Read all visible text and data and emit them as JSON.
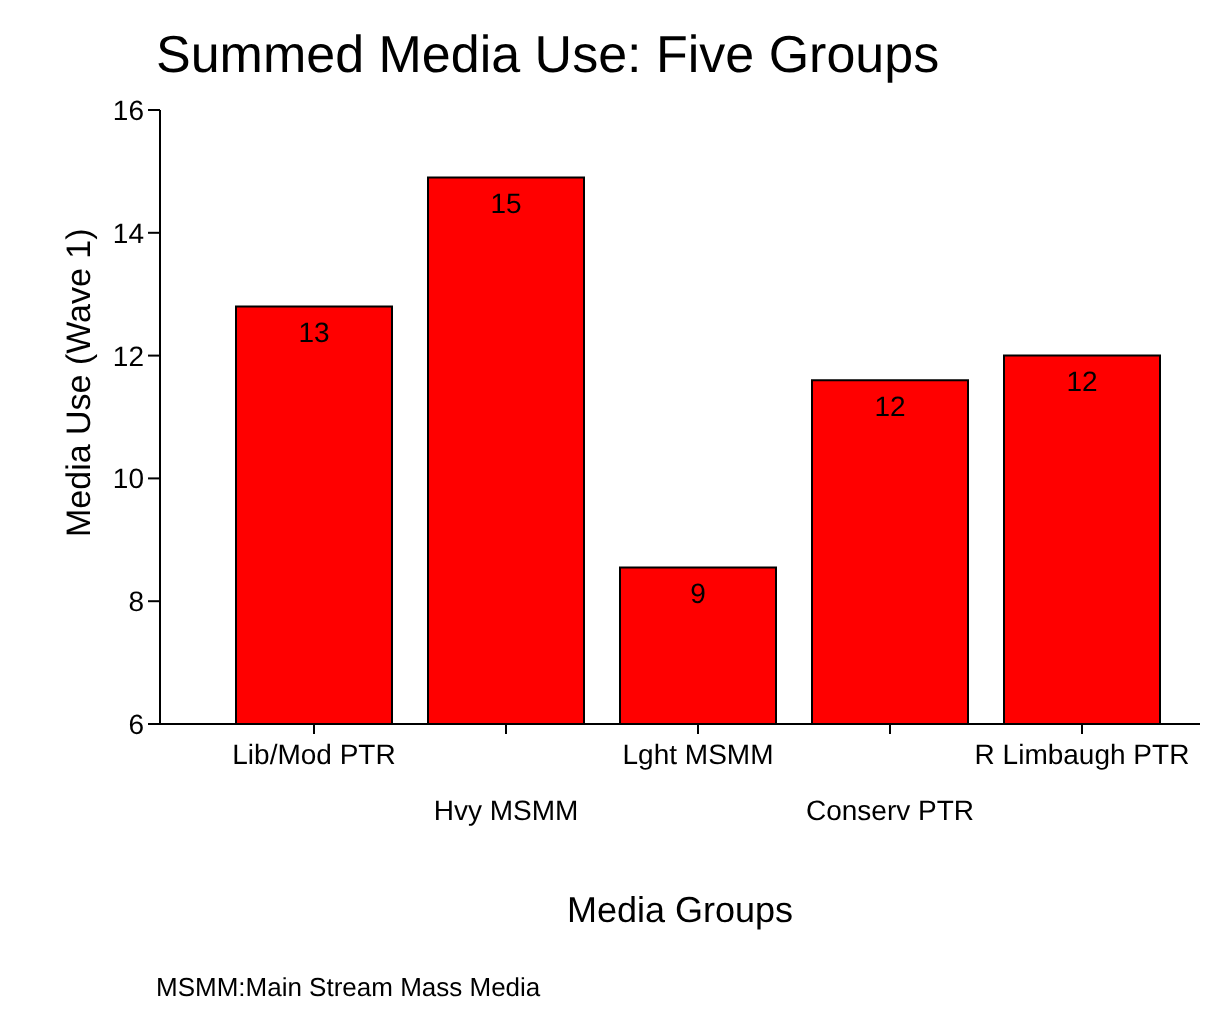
{
  "chart_data": {
    "type": "bar",
    "title": "Summed Media Use: Five Groups",
    "xlabel": "Media Groups",
    "ylabel": "Media Use (Wave 1)",
    "categories": [
      "Lib/Mod PTR",
      "Hvy MSMM",
      "Lght MSMM",
      "Conserv PTR",
      "R Limbaugh PTR"
    ],
    "values": [
      12.8,
      14.9,
      8.55,
      11.6,
      12.0
    ],
    "value_labels": [
      "13",
      "15",
      "9",
      "12",
      "12"
    ],
    "color": "#ff0000",
    "ylim": [
      6,
      16
    ],
    "yticks": [
      6,
      8,
      10,
      12,
      14,
      16
    ],
    "grid": false,
    "annotations": [
      "MSMM:Main Stream Mass Media"
    ]
  }
}
